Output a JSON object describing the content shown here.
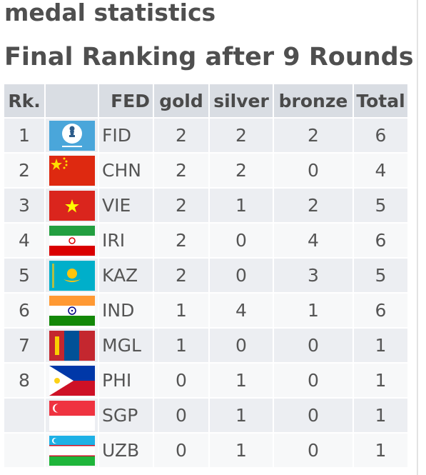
{
  "heading": "medal statistics",
  "subheading": "Final Ranking after 9 Rounds",
  "columns": {
    "rk": "Rk.",
    "flag": "",
    "fed": "FED",
    "gold": "gold",
    "silver": "silver",
    "bronze": "bronze",
    "total": "Total"
  },
  "rows": [
    {
      "rk": "1",
      "fed": "FID",
      "gold": "2",
      "silver": "2",
      "bronze": "2",
      "total": "6",
      "flag_icon": "fide-flag-icon"
    },
    {
      "rk": "2",
      "fed": "CHN",
      "gold": "2",
      "silver": "2",
      "bronze": "0",
      "total": "4",
      "flag_icon": "china-flag-icon"
    },
    {
      "rk": "3",
      "fed": "VIE",
      "gold": "2",
      "silver": "1",
      "bronze": "2",
      "total": "5",
      "flag_icon": "vietnam-flag-icon"
    },
    {
      "rk": "4",
      "fed": "IRI",
      "gold": "2",
      "silver": "0",
      "bronze": "4",
      "total": "6",
      "flag_icon": "iran-flag-icon"
    },
    {
      "rk": "5",
      "fed": "KAZ",
      "gold": "2",
      "silver": "0",
      "bronze": "3",
      "total": "5",
      "flag_icon": "kazakhstan-flag-icon"
    },
    {
      "rk": "6",
      "fed": "IND",
      "gold": "1",
      "silver": "4",
      "bronze": "1",
      "total": "6",
      "flag_icon": "india-flag-icon"
    },
    {
      "rk": "7",
      "fed": "MGL",
      "gold": "1",
      "silver": "0",
      "bronze": "0",
      "total": "1",
      "flag_icon": "mongolia-flag-icon"
    },
    {
      "rk": "8",
      "fed": "PHI",
      "gold": "0",
      "silver": "1",
      "bronze": "0",
      "total": "1",
      "flag_icon": "philippines-flag-icon"
    },
    {
      "rk": "",
      "fed": "SGP",
      "gold": "0",
      "silver": "1",
      "bronze": "0",
      "total": "1",
      "flag_icon": "singapore-flag-icon"
    },
    {
      "rk": "",
      "fed": "UZB",
      "gold": "0",
      "silver": "1",
      "bronze": "0",
      "total": "1",
      "flag_icon": "uzbekistan-flag-icon"
    }
  ]
}
